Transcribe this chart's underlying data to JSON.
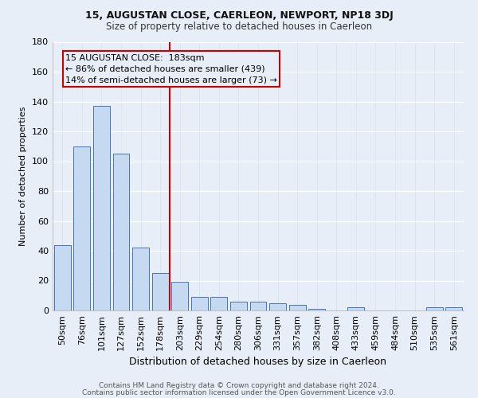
{
  "title": "15, AUGUSTAN CLOSE, CAERLEON, NEWPORT, NP18 3DJ",
  "subtitle": "Size of property relative to detached houses in Caerleon",
  "xlabel": "Distribution of detached houses by size in Caerleon",
  "ylabel": "Number of detached properties",
  "categories": [
    "50sqm",
    "76sqm",
    "101sqm",
    "127sqm",
    "152sqm",
    "178sqm",
    "203sqm",
    "229sqm",
    "254sqm",
    "280sqm",
    "306sqm",
    "331sqm",
    "357sqm",
    "382sqm",
    "408sqm",
    "433sqm",
    "459sqm",
    "484sqm",
    "510sqm",
    "535sqm",
    "561sqm"
  ],
  "values": [
    44,
    110,
    137,
    105,
    42,
    25,
    19,
    9,
    9,
    6,
    6,
    5,
    4,
    1,
    0,
    2,
    0,
    0,
    0,
    2,
    2
  ],
  "bar_color": "#c5d9f1",
  "bar_edge_color": "#4472c4",
  "red_line_x": 5.5,
  "annotation_line1": "15 AUGUSTAN CLOSE:  183sqm",
  "annotation_line2": "← 86% of detached houses are smaller (439)",
  "annotation_line3": "14% of semi-detached houses are larger (73) →",
  "annotation_box_edge": "#cc0000",
  "red_line_color": "#cc0000",
  "background_color": "#e8eef8",
  "grid_color": "#d0d8e8",
  "footer_line1": "Contains HM Land Registry data © Crown copyright and database right 2024.",
  "footer_line2": "Contains public sector information licensed under the Open Government Licence v3.0.",
  "ylim": [
    0,
    180
  ],
  "yticks": [
    0,
    20,
    40,
    60,
    80,
    100,
    120,
    140,
    160,
    180
  ],
  "title_fontsize": 9,
  "subtitle_fontsize": 8.5,
  "xlabel_fontsize": 9,
  "ylabel_fontsize": 8,
  "tick_fontsize": 8,
  "annotation_fontsize": 8
}
